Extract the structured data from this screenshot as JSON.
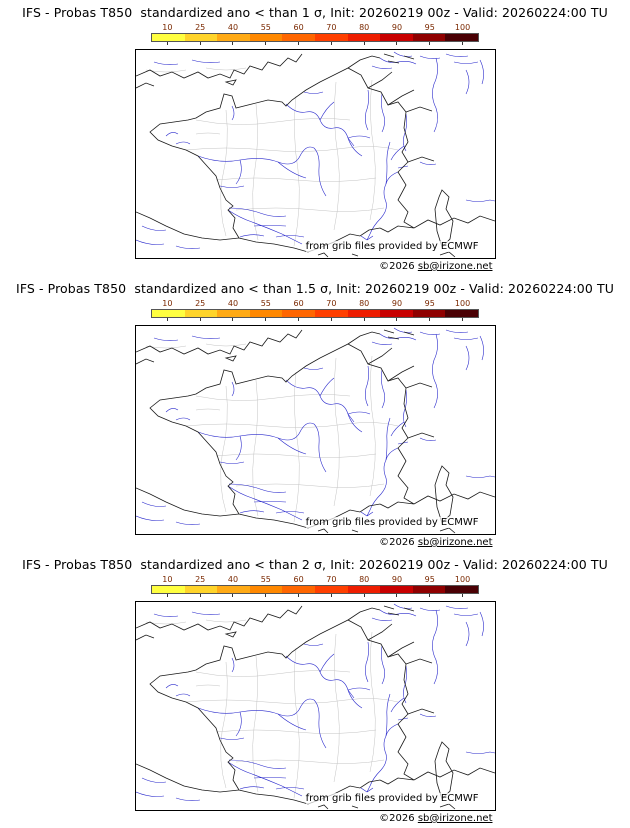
{
  "page": {
    "background": "#ffffff"
  },
  "panels": [
    {
      "title": "IFS - Probas T850  standardized ano < than 1 σ, Init: 20260219 00z - Valid: 20260224:00 TU"
    },
    {
      "title": "IFS - Probas T850  standardized ano < than 1.5 σ, Init: 20260219 00z - Valid: 20260224:00 TU"
    },
    {
      "title": "IFS - Probas T850  standardized ano < than 2 σ, Init: 20260219 00z - Valid: 20260224:00 TU"
    }
  ],
  "colorbar": {
    "labels": [
      "10",
      "25",
      "40",
      "55",
      "60",
      "70",
      "80",
      "90",
      "95",
      "100"
    ],
    "colors": [
      "#ffff40",
      "#ffd42a",
      "#ffaa15",
      "#ff8800",
      "#ff6600",
      "#ff3f00",
      "#ee1d00",
      "#c80000",
      "#8f0000",
      "#4a0004"
    ],
    "label_color": "#7a2800"
  },
  "map": {
    "coast_color": "#1a1a1a",
    "river_color": "#2a2acc",
    "department_color": "#c4c4c4"
  },
  "attribution": {
    "provider": "from grib files provided by ECMWF",
    "copyright": "©2026 ",
    "link": "sb@irizone.net"
  }
}
